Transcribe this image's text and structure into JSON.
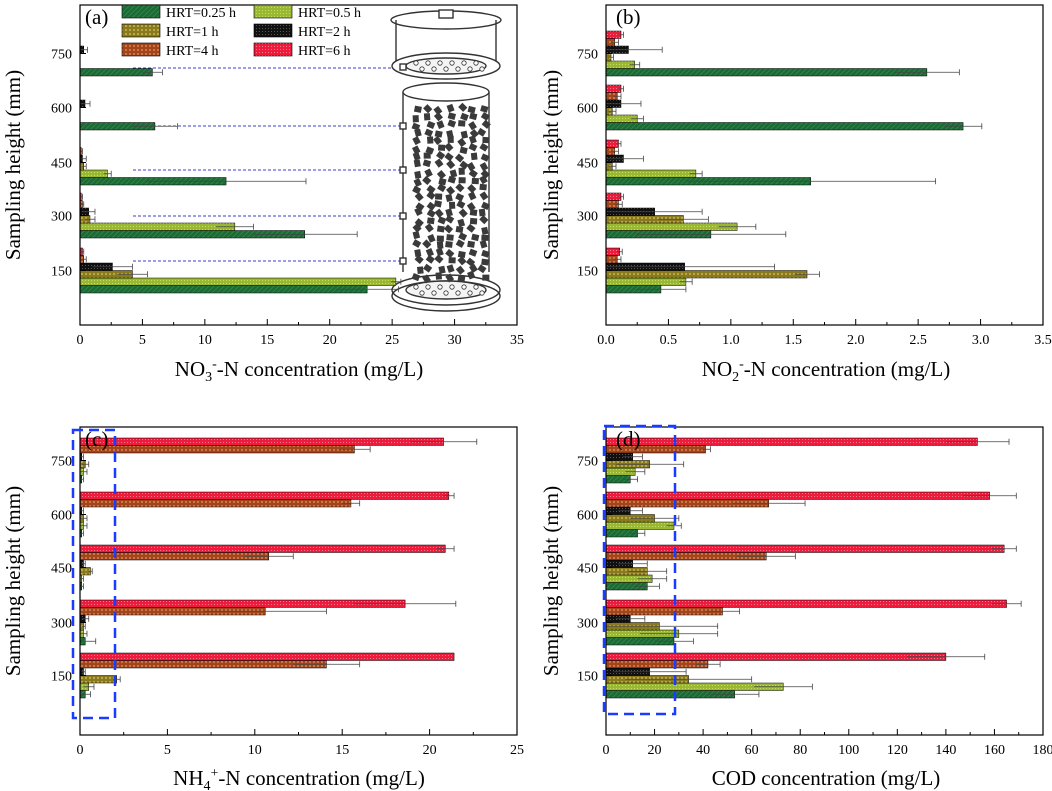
{
  "legend": {
    "entries": [
      {
        "label": "HRT=0.25 h",
        "color": "#1d6a36"
      },
      {
        "label": "HRT=0.5 h",
        "color": "#9ab832"
      },
      {
        "label": "HRT=1 h",
        "color": "#8a7a1c"
      },
      {
        "label": "HRT=2 h",
        "color": "#111111"
      },
      {
        "label": "HRT=4 h",
        "color": "#a4441a"
      },
      {
        "label": "HRT=6 h",
        "color": "#ee1b3c"
      }
    ]
  },
  "chart_data": [
    {
      "panel": "(a)",
      "type": "bar",
      "orientation": "horizontal",
      "xlabel_parts": [
        "NO",
        "3",
        "-",
        "-N concentration (mg/L)"
      ],
      "ylabel": "Sampling height (mm)",
      "xlim": [
        0,
        35
      ],
      "xticks": [
        0,
        5,
        10,
        15,
        20,
        25,
        30,
        35
      ],
      "categories": [
        "150",
        "300",
        "450",
        "600",
        "750"
      ],
      "series": [
        {
          "name": "HRT=0.25 h",
          "values": [
            23.0,
            18.0,
            11.7,
            6.0,
            5.8
          ],
          "errors": [
            2.5,
            4.2,
            6.4,
            1.8,
            0.8
          ]
        },
        {
          "name": "HRT=0.5 h",
          "values": [
            25.3,
            12.4,
            2.2,
            null,
            null
          ],
          "errors": [
            0.4,
            1.5,
            0.3,
            null,
            null
          ]
        },
        {
          "name": "HRT=1 h",
          "values": [
            4.2,
            0.8,
            0.3,
            null,
            null
          ],
          "errors": [
            1.2,
            0.4,
            0.2,
            null,
            null
          ]
        },
        {
          "name": "HRT=2 h",
          "values": [
            2.6,
            0.7,
            0.2,
            0.4,
            0.3
          ],
          "errors": [
            1.6,
            0.5,
            0.3,
            0.4,
            0.3
          ]
        },
        {
          "name": "HRT=4 h",
          "values": [
            0.3,
            0.2,
            0.1,
            null,
            null
          ],
          "errors": [
            0.2,
            0.1,
            0.1,
            null,
            null
          ]
        },
        {
          "name": "HRT=6 h",
          "values": [
            0.2,
            0.1,
            null,
            null,
            null
          ],
          "errors": [
            0.1,
            0.1,
            null,
            null,
            null
          ]
        }
      ]
    },
    {
      "panel": "(b)",
      "type": "bar",
      "orientation": "horizontal",
      "xlabel_parts": [
        "NO",
        "2",
        "-",
        "-N concentration (mg/L)"
      ],
      "ylabel": "Sampling height (mm)",
      "xlim": [
        0,
        3.5
      ],
      "xticks": [
        "0.0",
        "0.5",
        "1.0",
        "1.5",
        "2.0",
        "2.5",
        "3.0",
        "3.5"
      ],
      "categories": [
        "150",
        "300",
        "450",
        "600",
        "750"
      ],
      "series": [
        {
          "name": "HRT=0.25 h",
          "values": [
            0.44,
            0.84,
            1.64,
            2.86,
            2.57
          ],
          "errors": [
            0.2,
            0.6,
            1.0,
            0.15,
            0.26
          ]
        },
        {
          "name": "HRT=0.5 h",
          "values": [
            0.64,
            1.05,
            0.72,
            0.25,
            0.23
          ],
          "errors": [
            0.05,
            0.15,
            0.05,
            0.05,
            0.04
          ]
        },
        {
          "name": "HRT=1 h",
          "values": [
            1.61,
            0.62,
            0.05,
            0.05,
            0.04
          ],
          "errors": [
            0.1,
            0.2,
            0.03,
            0.03,
            0.02
          ]
        },
        {
          "name": "HRT=2 h",
          "values": [
            0.63,
            0.39,
            0.14,
            0.12,
            0.18
          ],
          "errors": [
            0.72,
            0.38,
            0.16,
            0.16,
            0.27
          ]
        },
        {
          "name": "HRT=4 h",
          "values": [
            0.09,
            0.1,
            0.07,
            0.09,
            0.07
          ],
          "errors": [
            0.03,
            0.03,
            0.03,
            0.03,
            0.03
          ]
        },
        {
          "name": "HRT=6 h",
          "values": [
            0.11,
            0.12,
            0.1,
            0.12,
            0.12
          ],
          "errors": [
            0.02,
            0.02,
            0.02,
            0.02,
            0.02
          ]
        }
      ]
    },
    {
      "panel": "(c)",
      "type": "bar",
      "orientation": "horizontal",
      "xlabel_parts": [
        "NH",
        "4",
        "+",
        "-N concentration (mg/L)"
      ],
      "ylabel": "Sampling height (mm)",
      "xlim": [
        0,
        25
      ],
      "xticks": [
        0,
        5,
        10,
        15,
        20,
        25
      ],
      "categories": [
        "150",
        "300",
        "450",
        "600",
        "750"
      ],
      "series": [
        {
          "name": "HRT=0.25 h",
          "values": [
            0.3,
            0.3,
            0.1,
            0.1,
            0.1
          ],
          "errors": [
            0.3,
            0.6,
            0.1,
            0.1,
            0.1
          ]
        },
        {
          "name": "HRT=0.5 h",
          "values": [
            0.5,
            0.2,
            0.1,
            0.2,
            0.2
          ],
          "errors": [
            0.3,
            0.2,
            0.1,
            0.2,
            0.2
          ]
        },
        {
          "name": "HRT=1 h",
          "values": [
            2.1,
            0.2,
            0.6,
            0.2,
            0.3
          ],
          "errors": [
            0.2,
            0.1,
            0.1,
            0.2,
            0.2
          ]
        },
        {
          "name": "HRT=2 h",
          "values": [
            0.2,
            0.3,
            0.2,
            0.1,
            0.1
          ],
          "errors": [
            0.1,
            0.2,
            0.1,
            0.1,
            0.1
          ]
        },
        {
          "name": "HRT=4 h",
          "values": [
            14.1,
            10.6,
            10.8,
            15.5,
            15.7
          ],
          "errors": [
            1.9,
            3.5,
            1.4,
            0.5,
            0.9
          ]
        },
        {
          "name": "HRT=6 h",
          "values": [
            21.4,
            18.6,
            20.9,
            21.1,
            20.8
          ],
          "errors": [
            0.0,
            2.9,
            0.5,
            0.3,
            1.9
          ]
        }
      ]
    },
    {
      "panel": "(d)",
      "type": "bar",
      "orientation": "horizontal",
      "xlabel_parts": [
        "COD concentration (mg/L)"
      ],
      "ylabel": "Sampling height (mm)",
      "xlim": [
        0,
        180
      ],
      "xticks": [
        0,
        20,
        40,
        60,
        80,
        100,
        120,
        140,
        160,
        180
      ],
      "categories": [
        "150",
        "300",
        "450",
        "600",
        "750"
      ],
      "series": [
        {
          "name": "HRT=0.25 h",
          "values": [
            53,
            28,
            17,
            13,
            10
          ],
          "errors": [
            10,
            8,
            5,
            3,
            3
          ]
        },
        {
          "name": "HRT=0.5 h",
          "values": [
            73,
            30,
            19,
            28,
            12
          ],
          "errors": [
            12,
            16,
            6,
            3,
            4
          ]
        },
        {
          "name": "HRT=1 h",
          "values": [
            34,
            22,
            17,
            20,
            18
          ],
          "errors": [
            26,
            24,
            8,
            10,
            14
          ]
        },
        {
          "name": "HRT=2 h",
          "values": [
            18,
            10,
            11,
            10,
            11
          ],
          "errors": [
            15,
            6,
            6,
            5,
            4
          ]
        },
        {
          "name": "HRT=4 h",
          "values": [
            42,
            48,
            66,
            67,
            41
          ],
          "errors": [
            5,
            7,
            12,
            15,
            2
          ]
        },
        {
          "name": "HRT=6 h",
          "values": [
            140,
            165,
            164,
            158,
            153
          ],
          "errors": [
            16,
            6,
            5,
            11,
            13
          ]
        }
      ]
    }
  ]
}
